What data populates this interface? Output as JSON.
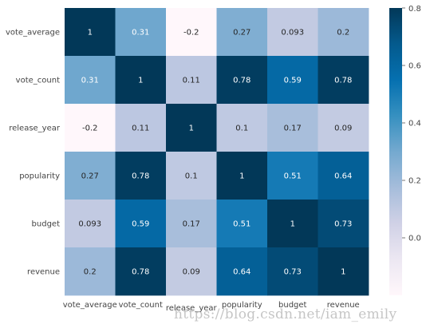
{
  "chart_data": {
    "type": "heatmap",
    "title": "",
    "xlabel": "",
    "ylabel": "",
    "row_labels": [
      "vote_average",
      "vote_count",
      "release_year",
      "popularity",
      "budget",
      "revenue"
    ],
    "col_labels": [
      "vote_average",
      "vote_count",
      "release_year",
      "popularity",
      "budget",
      "revenue"
    ],
    "values": [
      [
        1,
        0.31,
        -0.2,
        0.27,
        0.093,
        0.2
      ],
      [
        0.31,
        1,
        0.11,
        0.78,
        0.59,
        0.78
      ],
      [
        -0.2,
        0.11,
        1,
        0.1,
        0.17,
        0.09
      ],
      [
        0.27,
        0.78,
        0.1,
        1,
        0.51,
        0.64
      ],
      [
        0.093,
        0.59,
        0.17,
        0.51,
        1,
        0.73
      ],
      [
        0.2,
        0.78,
        0.09,
        0.64,
        0.73,
        1
      ]
    ],
    "annotations": [
      [
        "1",
        "0.31",
        "-0.2",
        "0.27",
        "0.093",
        "0.2"
      ],
      [
        "0.31",
        "1",
        "0.11",
        "0.78",
        "0.59",
        "0.78"
      ],
      [
        "-0.2",
        "0.11",
        "1",
        "0.1",
        "0.17",
        "0.09"
      ],
      [
        "0.27",
        "0.78",
        "0.1",
        "1",
        "0.51",
        "0.64"
      ],
      [
        "0.093",
        "0.59",
        "0.17",
        "0.51",
        "1",
        "0.73"
      ],
      [
        "0.2",
        "0.78",
        "0.09",
        "0.64",
        "0.73",
        "1"
      ]
    ],
    "colormap": "PuBu",
    "color_range": [
      -0.2,
      0.8
    ],
    "colorbar": {
      "ticks": [
        0.0,
        0.2,
        0.4,
        0.6,
        0.8
      ],
      "tick_labels": [
        "0.0",
        "0.2",
        "0.4",
        "0.6",
        "0.8"
      ]
    }
  },
  "watermark": "https://blog.csdn.net/iam_emily"
}
